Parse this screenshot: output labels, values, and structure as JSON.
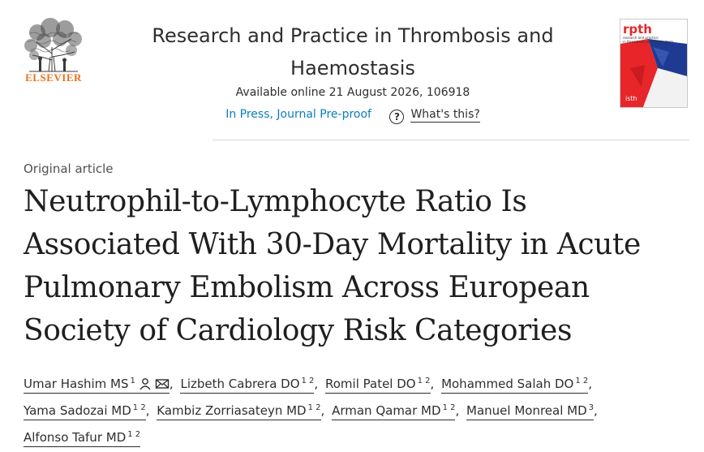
{
  "publisher": {
    "name": "ELSEVIER"
  },
  "journal": {
    "title_line1": "Research and Practice in Thrombosis and",
    "title_line2": "Haemostasis",
    "available": "Available online 21 August 2026, 106918",
    "status_link": "In Press, Journal Pre-proof",
    "whats_this": "What's this?",
    "help_glyph": "?",
    "cover": {
      "logo": "rpth",
      "subtitle_line1": "research and practice",
      "subtitle_line2": "in thrombosis and haemostasis",
      "society": "isth",
      "colors": {
        "red": "#e8262a",
        "blue": "#1f3a93"
      }
    }
  },
  "article": {
    "type": "Original article",
    "title_lines": [
      "Neutrophil-to-Lymphocyte Ratio Is",
      "Associated With 30-Day Mortality in Acute",
      "Pulmonary Embolism Across European",
      "Society of Cardiology Risk Categories"
    ]
  },
  "authors": [
    {
      "name": "Umar Hashim MS",
      "sup": "1",
      "icons": [
        "person-icon",
        "envelope-icon"
      ]
    },
    {
      "name": "Lizbeth Cabrera DO",
      "sup": "1 2"
    },
    {
      "name": "Romil Patel DO",
      "sup": "1 2"
    },
    {
      "name": "Mohammed Salah DO",
      "sup": "1 2"
    },
    {
      "name": "Yama Sadozai MD",
      "sup": "1 2"
    },
    {
      "name": "Kambiz Zorriasateyn MD",
      "sup": "1 2"
    },
    {
      "name": "Arman Qamar MD",
      "sup": "1 2"
    },
    {
      "name": "Manuel Monreal MD",
      "sup": "3"
    },
    {
      "name": "Alfonso Tafur MD",
      "sup": "1 2"
    }
  ],
  "separator": ","
}
